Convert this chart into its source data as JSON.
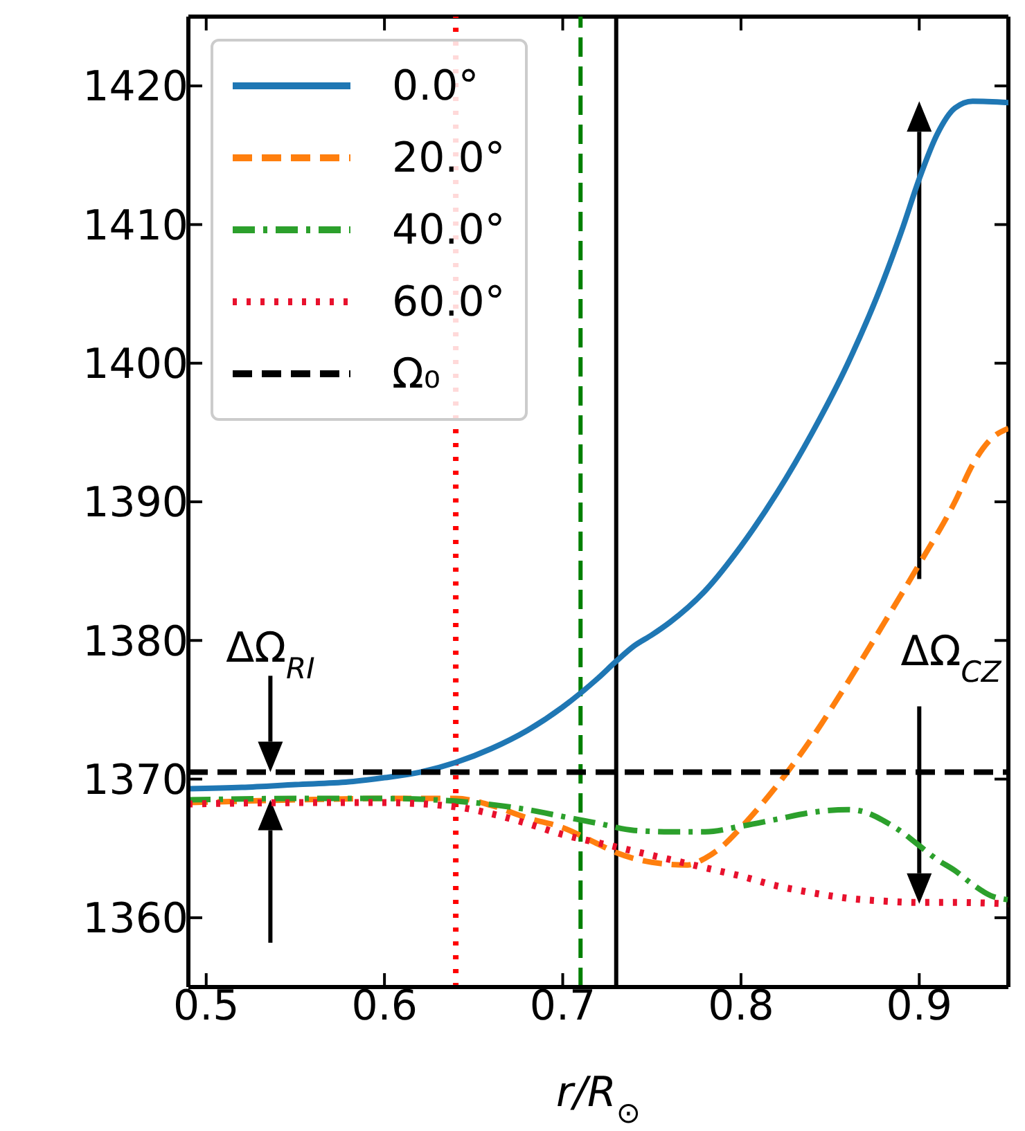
{
  "chart_data": {
    "type": "line",
    "xlabel": "r/R$_{⊙}$",
    "xlim": [
      0.49,
      0.95
    ],
    "xticks": [
      0.5,
      0.6,
      0.7,
      0.8,
      0.9
    ],
    "ylim": [
      1355,
      1425
    ],
    "yticks": [
      1360,
      1370,
      1380,
      1390,
      1400,
      1410,
      1420
    ],
    "legend": "top left",
    "series": [
      {
        "name": "0.0°",
        "color": "#1f77b4",
        "line_style": "solid",
        "x": [
          0.49,
          0.52,
          0.55,
          0.58,
          0.6,
          0.62,
          0.64,
          0.66,
          0.68,
          0.7,
          0.72,
          0.73,
          0.74,
          0.75,
          0.76,
          0.78,
          0.8,
          0.82,
          0.84,
          0.86,
          0.88,
          0.89,
          0.9,
          0.91,
          0.92,
          0.93,
          0.95
        ],
        "values": [
          1369.3,
          1369.4,
          1369.6,
          1369.8,
          1370.1,
          1370.5,
          1371.2,
          1372.2,
          1373.5,
          1375.2,
          1377.3,
          1378.5,
          1379.6,
          1380.4,
          1381.3,
          1383.6,
          1386.8,
          1390.6,
          1395,
          1400,
          1406,
          1409.5,
          1413.3,
          1416.5,
          1418.4,
          1418.9,
          1418.8
        ]
      },
      {
        "name": "20.0°",
        "color": "#ff7f0e",
        "line_style": "dashed",
        "x": [
          0.49,
          0.55,
          0.6,
          0.64,
          0.66,
          0.68,
          0.7,
          0.72,
          0.73,
          0.75,
          0.77,
          0.78,
          0.79,
          0.8,
          0.82,
          0.84,
          0.86,
          0.88,
          0.9,
          0.92,
          0.93,
          0.94,
          0.95
        ],
        "values": [
          1368.3,
          1368.5,
          1368.6,
          1368.6,
          1368.1,
          1367.2,
          1366.5,
          1365.3,
          1364.7,
          1364,
          1363.8,
          1364.3,
          1365.2,
          1366.5,
          1369.5,
          1373,
          1377,
          1381.2,
          1385.5,
          1390,
          1392.7,
          1394.5,
          1395.3
        ]
      },
      {
        "name": "40.0°",
        "color": "#2ca02c",
        "line_style": "dashdot",
        "x": [
          0.49,
          0.55,
          0.6,
          0.65,
          0.68,
          0.7,
          0.72,
          0.74,
          0.76,
          0.78,
          0.8,
          0.82,
          0.84,
          0.86,
          0.87,
          0.88,
          0.89,
          0.9,
          0.91,
          0.92,
          0.93,
          0.94,
          0.95
        ],
        "values": [
          1368.5,
          1368.6,
          1368.6,
          1368.3,
          1367.8,
          1367.3,
          1366.8,
          1366.3,
          1366.2,
          1366.2,
          1366.6,
          1367.1,
          1367.6,
          1367.8,
          1367.6,
          1367,
          1366.2,
          1365.2,
          1364.2,
          1363.4,
          1362.4,
          1361.6,
          1361.3
        ]
      },
      {
        "name": "60.0°",
        "color": "#e8112d",
        "line_style": "dotted",
        "x": [
          0.49,
          0.55,
          0.6,
          0.64,
          0.66,
          0.68,
          0.7,
          0.72,
          0.74,
          0.76,
          0.78,
          0.8,
          0.82,
          0.84,
          0.86,
          0.88,
          0.9,
          0.92,
          0.95
        ],
        "values": [
          1368.2,
          1368.3,
          1368.3,
          1368,
          1367.5,
          1366.8,
          1366,
          1365.4,
          1364.8,
          1364.2,
          1363.6,
          1363,
          1362.3,
          1361.8,
          1361.4,
          1361.2,
          1361.1,
          1361.1,
          1361
        ]
      },
      {
        "name": "Ω₀",
        "color": "#000000",
        "line_style": "dashed",
        "x": [
          0.49,
          0.95
        ],
        "values": [
          1370.5,
          1370.5
        ]
      }
    ],
    "ref_lines": [
      {
        "axis": "x",
        "value": 0.64,
        "color": "#ff0000",
        "line_style": "dotted"
      },
      {
        "axis": "x",
        "value": 0.71,
        "color": "#008000",
        "line_style": "dashed"
      },
      {
        "axis": "x",
        "value": 0.73,
        "color": "#000000",
        "line_style": "solid"
      }
    ],
    "annotations": [
      "ΔΩ$_{RI}$",
      "ΔΩ$_{CZ}$"
    ]
  }
}
